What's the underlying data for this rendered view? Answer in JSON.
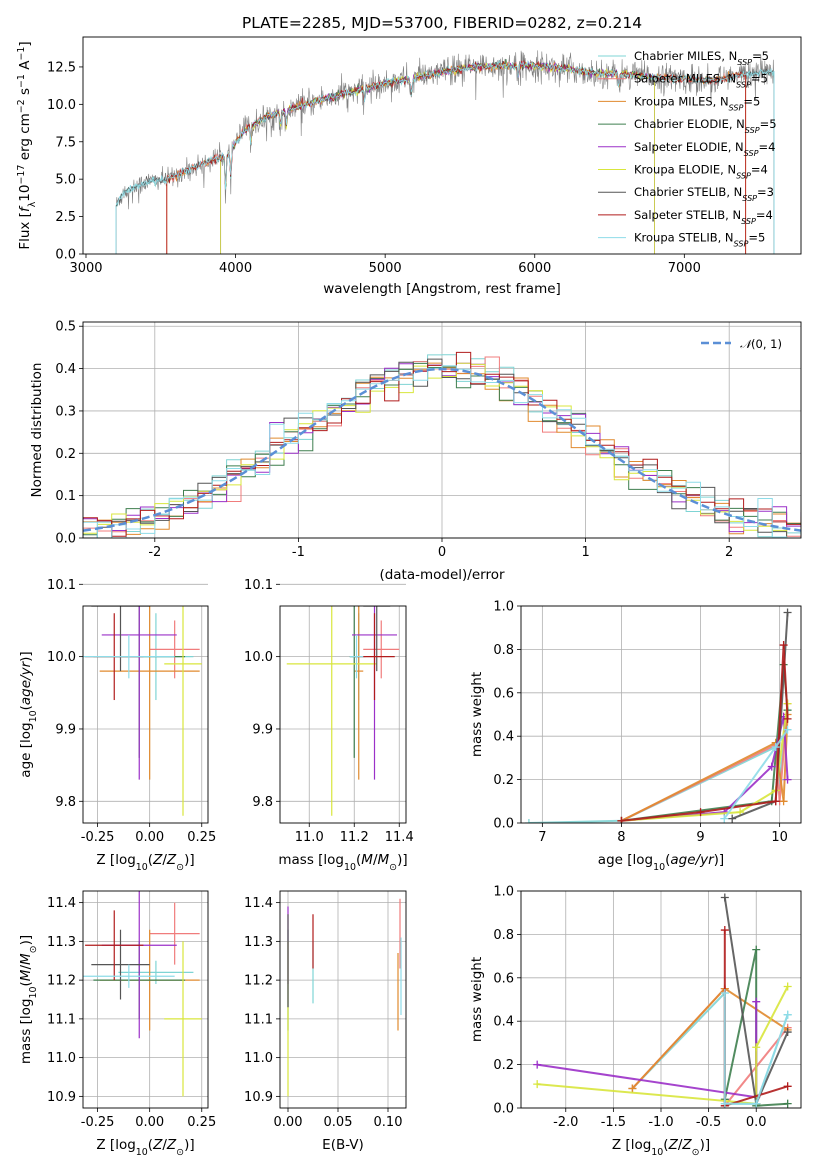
{
  "title": "PLATE=2285, MJD=53700, FIBERID=0282, z=0.214",
  "colors": {
    "s0": "#7FD4D4",
    "s1": "#F07C7C",
    "s2": "#E08A2E",
    "s3": "#3F7F4F",
    "s4": "#9B30C8",
    "s5": "#D8E63C",
    "s6": "#555555",
    "s7": "#B01C1C",
    "s8": "#8EDCE8",
    "gauss": "#5B8FD6",
    "spectrum": "#808080"
  },
  "chart_data": [
    {
      "type": "line",
      "id": "spectrum",
      "xlabel": "wavelength [Angstrom, rest frame]",
      "ylabel": "Flux [f_λ 10^-17 erg cm^-2 s^-1 A^-1]",
      "xlim": [
        2980,
        7780
      ],
      "ylim": [
        0,
        14.5
      ],
      "xticks": [
        3000,
        4000,
        5000,
        6000,
        7000
      ],
      "yticks": [
        0.0,
        2.5,
        5.0,
        7.5,
        10.0,
        12.5
      ],
      "legend_position": "right",
      "legend": [
        "Chabrier MILES, N_SSP=5",
        "Salpeter MILES, N_SSP=5",
        "Kroupa MILES, N_SSP=5",
        "Chabrier ELODIE, N_SSP=5",
        "Salpeter ELODIE, N_SSP=4",
        "Kroupa ELODIE, N_SSP=4",
        "Chabrier STELIB, N_SSP=3",
        "Salpeter STELIB, N_SSP=4",
        "Kroupa STELIB, N_SSP=5"
      ],
      "continuum": [
        [
          3200,
          3.2
        ],
        [
          3250,
          4.1
        ],
        [
          3400,
          4.8
        ],
        [
          3550,
          5.0
        ],
        [
          3700,
          5.7
        ],
        [
          3850,
          6.3
        ],
        [
          3950,
          6.6
        ],
        [
          4050,
          8.2
        ],
        [
          4200,
          9.1
        ],
        [
          4400,
          9.8
        ],
        [
          4600,
          10.4
        ],
        [
          4800,
          10.9
        ],
        [
          5000,
          11.4
        ],
        [
          5200,
          11.8
        ],
        [
          5400,
          12.2
        ],
        [
          5600,
          12.5
        ],
        [
          5800,
          12.6
        ],
        [
          6000,
          12.6
        ],
        [
          6200,
          12.4
        ],
        [
          6400,
          12.1
        ],
        [
          6600,
          12.0
        ],
        [
          6800,
          11.8
        ],
        [
          7000,
          11.7
        ],
        [
          7200,
          11.6
        ],
        [
          7400,
          12.0
        ],
        [
          7600,
          12.2
        ]
      ],
      "model_ranges": [
        [
          3200,
          7600
        ],
        [
          3540,
          7410
        ],
        [
          3540,
          7410
        ],
        [
          3900,
          6800
        ],
        [
          3900,
          6800
        ],
        [
          3900,
          6800
        ],
        [
          3200,
          7600
        ],
        [
          3540,
          7410
        ],
        [
          3200,
          7600
        ]
      ]
    },
    {
      "type": "histogram",
      "id": "residuals",
      "xlabel": "(data-model)/error",
      "ylabel": "Normed distribution",
      "xlim": [
        -2.5,
        2.5
      ],
      "ylim": [
        0,
        0.51
      ],
      "xticks": [
        -2,
        -1,
        0,
        1,
        2
      ],
      "yticks": [
        0.0,
        0.1,
        0.2,
        0.3,
        0.4,
        0.5
      ],
      "bin_width": 0.1,
      "grid": true,
      "legend": [
        "N(0,1)"
      ],
      "legend_position": "top-right"
    },
    {
      "type": "scatter",
      "id": "age-vs-Z",
      "xlabel": "Z [log10(Z/Z_sun)]",
      "ylabel": "age [log10(age/yr)]",
      "xlim": [
        -0.32,
        0.28
      ],
      "ylim": [
        9.77,
        10.07
      ],
      "xticks": [
        -0.25,
        0.0,
        0.25
      ],
      "yticks": [
        9.8,
        9.9,
        10.0,
        10.1
      ],
      "grid": true,
      "points": [
        {
          "x": 0.03,
          "y": 10.0,
          "xerr": 0.18,
          "yerr": 0.06
        },
        {
          "x": 0.12,
          "y": 10.01,
          "xerr": 0.12,
          "yerr": 0.04
        },
        {
          "x": 0.0,
          "y": 9.98,
          "xerr": 0.24,
          "yerr": 0.15
        },
        {
          "x": -0.05,
          "y": 10.0,
          "xerr": 0.22,
          "yerr": 0.14
        },
        {
          "x": -0.05,
          "y": 10.03,
          "xerr": 0.18,
          "yerr": 0.2
        },
        {
          "x": 0.16,
          "y": 9.99,
          "xerr": 0.09,
          "yerr": 0.21
        },
        {
          "x": -0.14,
          "y": 10.07,
          "xerr": 0.14,
          "yerr": 0.09
        },
        {
          "x": -0.17,
          "y": 10.0,
          "xerr": 0.14,
          "yerr": 0.06
        },
        {
          "x": -0.1,
          "y": 10.0,
          "xerr": 0.22,
          "yerr": 0.03
        }
      ]
    },
    {
      "type": "scatter",
      "id": "age-vs-mass",
      "xlabel": "mass [log10(M/M_sun)]",
      "ylabel": "",
      "xlim": [
        10.87,
        11.43
      ],
      "ylim": [
        9.77,
        10.07
      ],
      "xticks": [
        11.0,
        11.2,
        11.4
      ],
      "yticks": [
        9.8,
        9.9,
        10.0,
        10.1
      ],
      "grid": true,
      "points": [
        {
          "x": 11.22,
          "y": 10.0,
          "xerr": 0.03,
          "yerr": 0.06
        },
        {
          "x": 11.32,
          "y": 10.01,
          "xerr": 0.08,
          "yerr": 0.04
        },
        {
          "x": 11.22,
          "y": 9.98,
          "xerr": 0.02,
          "yerr": 0.15
        },
        {
          "x": 11.2,
          "y": 10.0,
          "xerr": 0.02,
          "yerr": 0.14
        },
        {
          "x": 11.29,
          "y": 10.03,
          "xerr": 0.1,
          "yerr": 0.2
        },
        {
          "x": 11.1,
          "y": 9.99,
          "xerr": 0.2,
          "yerr": 0.21
        },
        {
          "x": 11.3,
          "y": 10.07,
          "xerr": 0.06,
          "yerr": 0.09
        },
        {
          "x": 11.29,
          "y": 10.0,
          "xerr": 0.09,
          "yerr": 0.06
        },
        {
          "x": 11.21,
          "y": 10.0,
          "xerr": 0.03,
          "yerr": 0.03
        }
      ]
    },
    {
      "type": "line",
      "id": "weight-vs-age",
      "xlabel": "age [log10(age/yr)]",
      "ylabel": "mass weight",
      "xlim": [
        6.73,
        10.27
      ],
      "ylim": [
        0,
        1.0
      ],
      "xticks": [
        7,
        8,
        9,
        10
      ],
      "yticks": [
        0.0,
        0.2,
        0.4,
        0.6,
        0.8,
        1.0
      ],
      "grid": true,
      "series": [
        [
          [
            6.83,
            0.0
          ],
          [
            8.0,
            0.01
          ],
          [
            9.95,
            0.35
          ],
          [
            10.0,
            0.2
          ],
          [
            10.1,
            0.52
          ]
        ],
        [
          [
            8.0,
            0.01
          ],
          [
            9.95,
            0.36
          ],
          [
            10.0,
            0.1
          ],
          [
            10.1,
            0.55
          ]
        ],
        [
          [
            8.0,
            0.01
          ],
          [
            9.95,
            0.37
          ],
          [
            10.05,
            0.1
          ],
          [
            10.1,
            0.5
          ]
        ],
        [
          [
            8.0,
            0.01
          ],
          [
            9.9,
            0.1
          ],
          [
            10.05,
            0.73
          ],
          [
            10.1,
            0.52
          ]
        ],
        [
          [
            8.0,
            0.01
          ],
          [
            9.3,
            0.05
          ],
          [
            9.9,
            0.26
          ],
          [
            10.05,
            0.49
          ],
          [
            10.1,
            0.2
          ]
        ],
        [
          [
            8.0,
            0.01
          ],
          [
            9.5,
            0.05
          ],
          [
            9.95,
            0.15
          ],
          [
            10.1,
            0.55
          ]
        ],
        [
          [
            9.4,
            0.02
          ],
          [
            9.95,
            0.1
          ],
          [
            10.1,
            0.97
          ]
        ],
        [
          [
            8.0,
            0.01
          ],
          [
            9.0,
            0.05
          ],
          [
            9.95,
            0.1
          ],
          [
            10.05,
            0.82
          ],
          [
            10.1,
            0.48
          ]
        ],
        [
          [
            9.3,
            0.02
          ],
          [
            9.95,
            0.35
          ],
          [
            10.1,
            0.43
          ]
        ]
      ]
    },
    {
      "type": "scatter",
      "id": "mass-vs-Z",
      "xlabel": "Z [log10(Z/Z_sun)]",
      "ylabel": "mass [log10(M/M_sun)]",
      "xlim": [
        -0.32,
        0.28
      ],
      "ylim": [
        10.87,
        11.43
      ],
      "xticks": [
        -0.25,
        0.0,
        0.25
      ],
      "yticks": [
        10.9,
        11.0,
        11.1,
        11.2,
        11.3,
        11.4
      ],
      "grid": true,
      "points": [
        {
          "x": 0.03,
          "y": 11.22,
          "xerr": 0.18,
          "yerr": 0.03
        },
        {
          "x": 0.12,
          "y": 11.32,
          "xerr": 0.12,
          "yerr": 0.08
        },
        {
          "x": 0.0,
          "y": 11.2,
          "xerr": 0.24,
          "yerr": 0.13
        },
        {
          "x": -0.05,
          "y": 11.2,
          "xerr": 0.22,
          "yerr": 0.1
        },
        {
          "x": -0.05,
          "y": 11.29,
          "xerr": 0.18,
          "yerr": 0.24
        },
        {
          "x": 0.16,
          "y": 11.1,
          "xerr": 0.09,
          "yerr": 0.2
        },
        {
          "x": -0.14,
          "y": 11.24,
          "xerr": 0.14,
          "yerr": 0.09
        },
        {
          "x": -0.17,
          "y": 11.29,
          "xerr": 0.14,
          "yerr": 0.09
        },
        {
          "x": -0.1,
          "y": 11.21,
          "xerr": 0.22,
          "yerr": 0.03
        }
      ]
    },
    {
      "type": "scatter",
      "id": "mass-vs-ebv",
      "xlabel": "E(B-V)",
      "ylabel": "",
      "xlim": [
        -0.008,
        0.118
      ],
      "ylim": [
        10.87,
        11.43
      ],
      "xticks": [
        0.0,
        0.05,
        0.1
      ],
      "yticks": [
        10.9,
        11.0,
        11.1,
        11.2,
        11.3,
        11.4
      ],
      "grid": true,
      "points": [
        {
          "x": 0.025,
          "y": 11.22,
          "yerr": 0.08
        },
        {
          "x": 0.112,
          "y": 11.32,
          "yerr": 0.09
        },
        {
          "x": 0.11,
          "y": 11.17,
          "yerr": 0.1
        },
        {
          "x": 0.0,
          "y": 11.2,
          "yerr": 0.13
        },
        {
          "x": 0.0,
          "y": 11.29,
          "yerr": 0.1
        },
        {
          "x": 0.0,
          "y": 11.1,
          "yerr": 0.2
        },
        {
          "x": 0.0,
          "y": 11.25,
          "yerr": 0.12
        },
        {
          "x": 0.025,
          "y": 11.3,
          "yerr": 0.07
        },
        {
          "x": 0.113,
          "y": 11.21,
          "yerr": 0.1
        }
      ]
    },
    {
      "type": "line",
      "id": "weight-vs-Z",
      "xlabel": "Z [log10(Z/Z_sun)]",
      "ylabel": "mass weight",
      "xlim": [
        -2.47,
        0.47
      ],
      "ylim": [
        0,
        1.0
      ],
      "xticks": [
        -2.0,
        -1.5,
        -1.0,
        -0.5,
        0.0
      ],
      "yticks": [
        0.0,
        0.2,
        0.4,
        0.6,
        0.8,
        1.0
      ],
      "grid": true,
      "series": [
        [
          [
            -1.3,
            0.09
          ],
          [
            -0.33,
            0.53
          ],
          [
            -0.33,
            0.02
          ],
          [
            0.0,
            0.02
          ],
          [
            0.33,
            0.43
          ]
        ],
        [
          [
            -1.3,
            0.09
          ],
          [
            -0.33,
            0.55
          ],
          [
            -0.33,
            0.01
          ],
          [
            0.33,
            0.37
          ]
        ],
        [
          [
            -1.3,
            0.09
          ],
          [
            -0.33,
            0.55
          ],
          [
            0.33,
            0.36
          ]
        ],
        [
          [
            -0.33,
            0.04
          ],
          [
            0.0,
            0.73
          ],
          [
            0.0,
            0.01
          ],
          [
            0.33,
            0.02
          ]
        ],
        [
          [
            -2.3,
            0.2
          ],
          [
            0.0,
            0.05
          ],
          [
            0.0,
            0.49
          ]
        ],
        [
          [
            -2.3,
            0.11
          ],
          [
            0.0,
            0.02
          ],
          [
            0.0,
            0.28
          ],
          [
            0.33,
            0.56
          ]
        ],
        [
          [
            -0.33,
            0.97
          ],
          [
            0.0,
            0.02
          ],
          [
            0.33,
            0.35
          ]
        ],
        [
          [
            -0.33,
            0.82
          ],
          [
            -0.33,
            0.01
          ],
          [
            0.33,
            0.1
          ]
        ],
        [
          [
            -0.33,
            0.53
          ],
          [
            -0.33,
            0.02
          ],
          [
            0.0,
            0.02
          ],
          [
            0.33,
            0.43
          ]
        ]
      ]
    }
  ]
}
